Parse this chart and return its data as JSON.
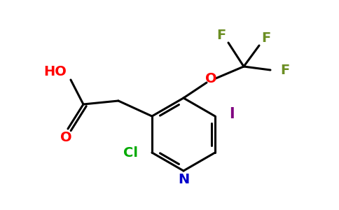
{
  "background_color": "#ffffff",
  "bond_color": "#000000",
  "atom_colors": {
    "HO": "#ff0000",
    "O_carbonyl": "#ff0000",
    "O_ether": "#ff0000",
    "Cl": "#00aa00",
    "N": "#0000cc",
    "I": "#800080",
    "F": "#6b8e23",
    "C": "#000000"
  },
  "figsize": [
    4.84,
    3.0
  ],
  "dpi": 100
}
